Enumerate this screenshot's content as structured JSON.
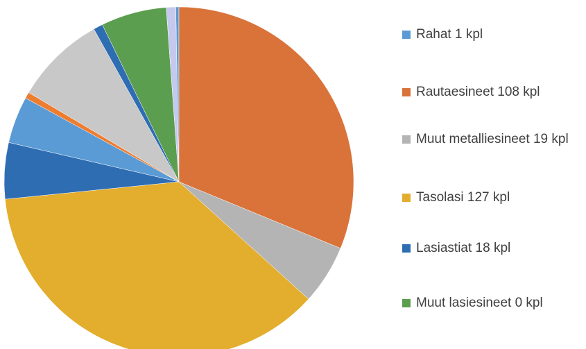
{
  "chart_data": {
    "type": "pie",
    "categories": [
      "Rahat 1 kpl",
      "Rautaesineet 108 kpl",
      "Muut metalliesineet 19 kpl",
      "Tasolasi 127 kpl",
      "Lasiastiat 18 kpl",
      "Muut lasiesineet 0 kpl",
      null,
      null,
      null,
      null,
      null,
      null
    ],
    "values": [
      1,
      108,
      19,
      127,
      18,
      0,
      15,
      2,
      29,
      3,
      21,
      3
    ],
    "colors": [
      "#5b9bd5",
      "#d9733a",
      "#b4b4b4",
      "#e3ad2d",
      "#2f6db3",
      "#5c9e4f",
      "#5b9bd5",
      "#ed7d31",
      "#c8c8c8",
      "#2f6db3",
      "#5c9e4f",
      "#c5c9ee"
    ]
  }
}
